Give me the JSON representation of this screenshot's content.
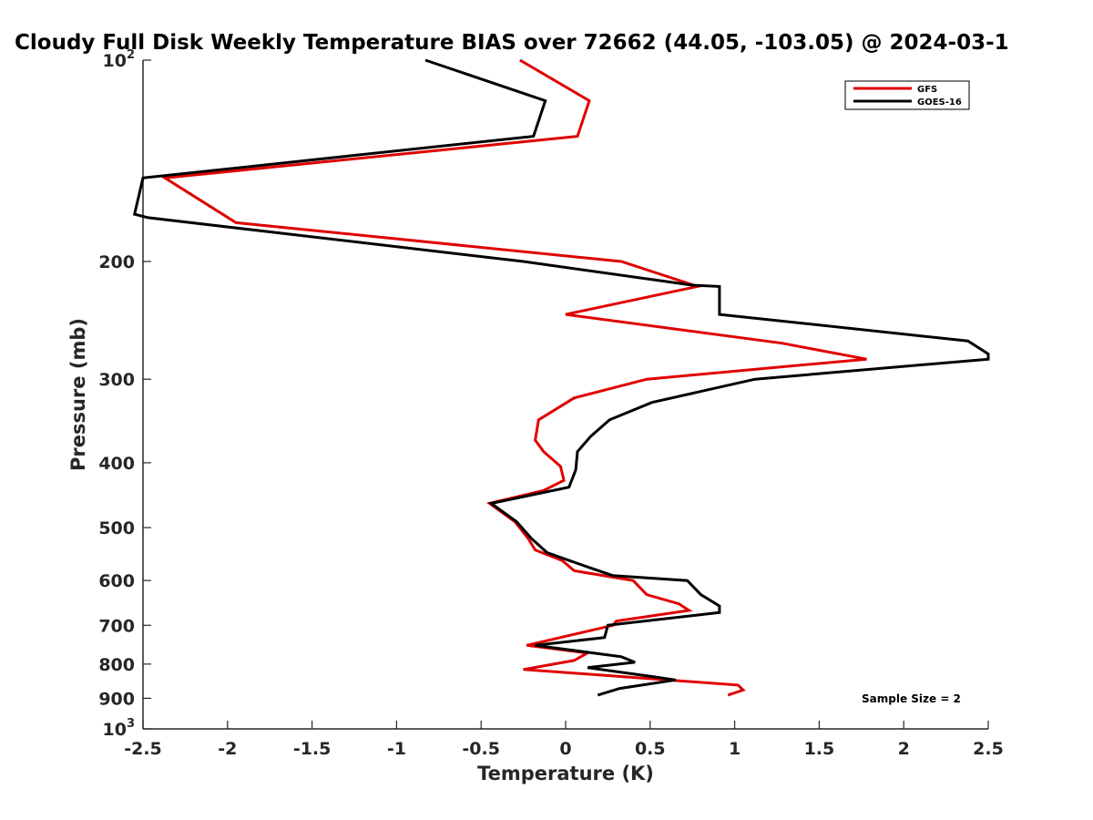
{
  "chart_data": {
    "type": "line",
    "title": "Cloudy Full Disk Weekly Temperature BIAS over 72662 (44.05, -103.05) @ 2024-03-1",
    "xlabel": "Temperature (K)",
    "ylabel": "Pressure (mb)",
    "xlim": [
      -2.5,
      2.5
    ],
    "ylim": [
      100,
      1000
    ],
    "y_scale": "log",
    "y_reversed": true,
    "grid": false,
    "x_ticks": [
      "-2.5",
      "-2",
      "-1.5",
      "-1",
      "-0.5",
      "0",
      "0.5",
      "1",
      "1.5",
      "2",
      "2.5"
    ],
    "x_tick_values": [
      -2.5,
      -2,
      -1.5,
      -1,
      -0.5,
      0,
      0.5,
      1,
      1.5,
      2,
      2.5
    ],
    "y_ticks": [
      {
        "value": 100,
        "base": "10",
        "exp": "2"
      },
      {
        "value": 200,
        "label": "200"
      },
      {
        "value": 300,
        "label": "300"
      },
      {
        "value": 400,
        "label": "400"
      },
      {
        "value": 500,
        "label": "500"
      },
      {
        "value": 600,
        "label": "600"
      },
      {
        "value": 700,
        "label": "700"
      },
      {
        "value": 800,
        "label": "800"
      },
      {
        "value": 900,
        "label": "900"
      },
      {
        "value": 1000,
        "base": "10",
        "exp": "3"
      }
    ],
    "legend_position": "top-right",
    "annotation": "Sample Size = 2",
    "series": [
      {
        "name": "GFS",
        "color": "#e00000",
        "points": [
          [
            -0.27,
            100
          ],
          [
            0.14,
            115
          ],
          [
            0.07,
            130
          ],
          [
            -2.37,
            150
          ],
          [
            -1.95,
            175
          ],
          [
            0.33,
            200
          ],
          [
            0.78,
            218
          ],
          [
            0.0,
            240
          ],
          [
            1.28,
            265
          ],
          [
            1.78,
            280
          ],
          [
            0.48,
            300
          ],
          [
            0.05,
            320
          ],
          [
            -0.16,
            345
          ],
          [
            -0.18,
            370
          ],
          [
            -0.13,
            385
          ],
          [
            -0.03,
            405
          ],
          [
            -0.01,
            425
          ],
          [
            -0.13,
            440
          ],
          [
            -0.45,
            460
          ],
          [
            -0.3,
            490
          ],
          [
            -0.22,
            520
          ],
          [
            -0.18,
            540
          ],
          [
            -0.02,
            560
          ],
          [
            0.05,
            580
          ],
          [
            0.4,
            600
          ],
          [
            0.48,
            630
          ],
          [
            0.67,
            650
          ],
          [
            0.73,
            665
          ],
          [
            0.3,
            690
          ],
          [
            0.28,
            700
          ],
          [
            -0.23,
            750
          ],
          [
            0.13,
            770
          ],
          [
            0.05,
            790
          ],
          [
            -0.25,
            815
          ],
          [
            1.02,
            860
          ],
          [
            1.05,
            875
          ],
          [
            0.96,
            890
          ]
        ]
      },
      {
        "name": "GOES-16",
        "color": "#000000",
        "points": [
          [
            -0.83,
            100
          ],
          [
            -0.12,
            115
          ],
          [
            -0.19,
            130
          ],
          [
            -2.5,
            150
          ],
          [
            -2.55,
            170
          ],
          [
            -2.47,
            172
          ],
          [
            -0.25,
            200
          ],
          [
            0.75,
            217
          ],
          [
            0.91,
            218
          ],
          [
            0.91,
            240
          ],
          [
            2.38,
            263
          ],
          [
            2.5,
            275
          ],
          [
            2.5,
            280
          ],
          [
            1.12,
            300
          ],
          [
            0.51,
            325
          ],
          [
            0.26,
            345
          ],
          [
            0.15,
            365
          ],
          [
            0.07,
            385
          ],
          [
            0.06,
            410
          ],
          [
            0.02,
            435
          ],
          [
            -0.44,
            460
          ],
          [
            -0.29,
            490
          ],
          [
            -0.2,
            520
          ],
          [
            -0.11,
            545
          ],
          [
            0.15,
            575
          ],
          [
            0.28,
            590
          ],
          [
            0.72,
            600
          ],
          [
            0.8,
            630
          ],
          [
            0.91,
            655
          ],
          [
            0.91,
            670
          ],
          [
            0.25,
            700
          ],
          [
            0.23,
            730
          ],
          [
            -0.18,
            750
          ],
          [
            0.33,
            780
          ],
          [
            0.41,
            795
          ],
          [
            0.13,
            810
          ],
          [
            0.51,
            835
          ],
          [
            0.65,
            845
          ],
          [
            0.32,
            870
          ],
          [
            0.19,
            890
          ]
        ]
      }
    ]
  }
}
